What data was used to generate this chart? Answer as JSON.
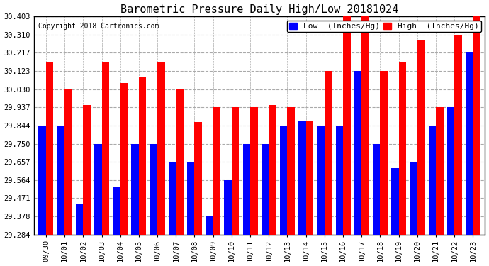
{
  "title": "Barometric Pressure Daily High/Low 20181024",
  "copyright": "Copyright 2018 Cartronics.com",
  "legend_low": "Low  (Inches/Hg)",
  "legend_high": "High  (Inches/Hg)",
  "categories": [
    "09/30",
    "10/01",
    "10/02",
    "10/03",
    "10/04",
    "10/05",
    "10/06",
    "10/07",
    "10/08",
    "10/09",
    "10/10",
    "10/11",
    "10/12",
    "10/13",
    "10/14",
    "10/15",
    "10/16",
    "10/17",
    "10/18",
    "10/19",
    "10/20",
    "10/21",
    "10/22",
    "10/23"
  ],
  "high_values": [
    30.167,
    30.03,
    29.95,
    30.17,
    30.06,
    30.09,
    30.17,
    30.03,
    29.86,
    29.937,
    29.937,
    29.937,
    29.95,
    29.937,
    29.87,
    30.123,
    30.403,
    30.403,
    30.123,
    30.17,
    30.283,
    29.937,
    30.31,
    30.403
  ],
  "low_values": [
    29.844,
    29.844,
    29.44,
    29.75,
    29.53,
    29.75,
    29.75,
    29.657,
    29.657,
    29.378,
    29.564,
    29.75,
    29.75,
    29.844,
    29.87,
    29.844,
    29.844,
    30.123,
    29.75,
    29.623,
    29.657,
    29.844,
    29.937,
    30.217
  ],
  "bar_color_high": "#ff0000",
  "bar_color_low": "#0000ff",
  "bg_color": "#ffffff",
  "grid_color": "#aaaaaa",
  "yticks": [
    29.284,
    29.378,
    29.471,
    29.564,
    29.657,
    29.75,
    29.844,
    29.937,
    30.03,
    30.123,
    30.217,
    30.31,
    30.403
  ],
  "ymin": 29.284,
  "ymax": 30.403,
  "title_fontsize": 11,
  "copyright_fontsize": 7,
  "legend_fontsize": 8,
  "tick_fontsize": 7.5
}
